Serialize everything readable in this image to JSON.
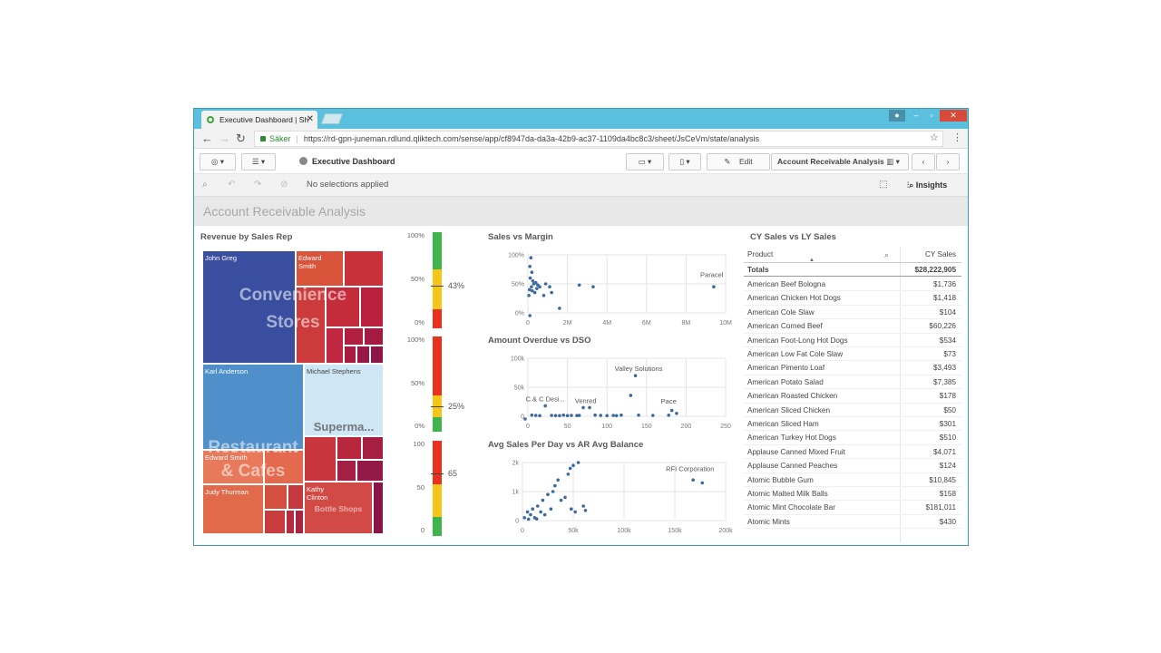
{
  "browser": {
    "tab_title": "Executive Dashboard | Sh",
    "tab_close": "✕",
    "secure_label": "Säker",
    "url": "https://rd-gpn-juneman.rdlund.qliktech.com/sense/app/cf8947da-da3a-42b9-ac37-1109da4bc8c3/sheet/JsCeVm/state/analysis"
  },
  "toolbar": {
    "app_name": "Executive Dashboard",
    "edit_label": "Edit",
    "sheet_selector": "Account Receivable Analysis"
  },
  "selections": {
    "status": "No selections applied",
    "insights_label": "Insights"
  },
  "sheet": {
    "title": "Account Receivable Analysis"
  },
  "treemap": {
    "title": "Revenue by Sales Rep",
    "reps": [
      "John Greg",
      "Edward Smith",
      "Karl Anderson",
      "Michael Stephens",
      "Edward Smith",
      "Judy Thurman",
      "Kathy Clinton"
    ],
    "groups": [
      "Convenience Stores",
      "Restaurant & Cafes",
      "Superma...",
      "Bottle Shops"
    ]
  },
  "gauges": [
    {
      "top": "100%",
      "mid": "50%",
      "bottom": "0%",
      "value": "43%"
    },
    {
      "top": "100%",
      "mid": "50%",
      "bottom": "0%",
      "value": "25%"
    },
    {
      "top": "100",
      "mid": "50",
      "bottom": "0",
      "value": "65"
    }
  ],
  "chart_data": [
    {
      "type": "scatter",
      "title": "Sales vs Margin",
      "yticks": [
        "100%",
        "50%",
        "0%"
      ],
      "xticks": [
        "0",
        "2M",
        "4M",
        "6M",
        "8M",
        "10M"
      ],
      "xlim": [
        0,
        10000000
      ],
      "ylim": [
        0,
        1
      ],
      "annotations": [
        "Paracel"
      ],
      "points": [
        [
          150000,
          0.95
        ],
        [
          100000,
          0.8
        ],
        [
          200000,
          0.7
        ],
        [
          120000,
          0.6
        ],
        [
          250000,
          0.55
        ],
        [
          300000,
          0.5
        ],
        [
          180000,
          0.45
        ],
        [
          400000,
          0.52
        ],
        [
          500000,
          0.48
        ],
        [
          350000,
          0.35
        ],
        [
          600000,
          0.45
        ],
        [
          800000,
          0.3
        ],
        [
          900000,
          0.5
        ],
        [
          1100000,
          0.45
        ],
        [
          1200000,
          0.35
        ],
        [
          1600000,
          0.08
        ],
        [
          2600000,
          0.48
        ],
        [
          3300000,
          0.45
        ],
        [
          9400000,
          0.45
        ],
        [
          100000,
          -0.1
        ],
        [
          50000,
          0.3
        ],
        [
          80000,
          0.4
        ],
        [
          220000,
          0.38
        ],
        [
          450000,
          0.42
        ]
      ]
    },
    {
      "type": "scatter",
      "title": "Amount Overdue vs DSO",
      "yticks": [
        "100k",
        "50k",
        "0"
      ],
      "xticks": [
        "0",
        "50",
        "100",
        "150",
        "200",
        "250"
      ],
      "xlim": [
        0,
        250
      ],
      "ylim": [
        0,
        100000
      ],
      "annotations": [
        "Valley Solutions",
        "C & C Desi...",
        "Venred",
        "Pace"
      ],
      "points": [
        [
          -5,
          -5000
        ],
        [
          5,
          2000
        ],
        [
          15,
          1000
        ],
        [
          22,
          18000
        ],
        [
          30,
          1500
        ],
        [
          40,
          1000
        ],
        [
          45,
          2000
        ],
        [
          55,
          1500
        ],
        [
          62,
          1200
        ],
        [
          70,
          15000
        ],
        [
          78,
          15000
        ],
        [
          85,
          2000
        ],
        [
          92,
          1500
        ],
        [
          100,
          1000
        ],
        [
          108,
          1500
        ],
        [
          112,
          1000
        ],
        [
          118,
          2000
        ],
        [
          130,
          36000
        ],
        [
          136,
          70000
        ],
        [
          140,
          2000
        ],
        [
          158,
          1500
        ],
        [
          178,
          1800
        ],
        [
          182,
          10000
        ],
        [
          188,
          5000
        ],
        [
          10,
          1500
        ],
        [
          35,
          1200
        ],
        [
          50,
          1000
        ],
        [
          65,
          1500
        ]
      ]
    },
    {
      "type": "scatter",
      "title": "Avg Sales Per Day vs AR Avg Balance",
      "yticks": [
        "2k",
        "1k",
        "0"
      ],
      "xticks": [
        "0",
        "50k",
        "100k",
        "150k",
        "200k"
      ],
      "xlim": [
        0,
        200000
      ],
      "ylim": [
        0,
        2000
      ],
      "annotations": [
        "RFI Corporation"
      ],
      "points": [
        [
          2000,
          100
        ],
        [
          5000,
          300
        ],
        [
          8000,
          200
        ],
        [
          10000,
          400
        ],
        [
          12000,
          100
        ],
        [
          15000,
          500
        ],
        [
          18000,
          300
        ],
        [
          20000,
          700
        ],
        [
          22000,
          200
        ],
        [
          25000,
          900
        ],
        [
          28000,
          400
        ],
        [
          30000,
          1000
        ],
        [
          32000,
          1200
        ],
        [
          35000,
          1400
        ],
        [
          38000,
          700
        ],
        [
          42000,
          800
        ],
        [
          45000,
          1600
        ],
        [
          47000,
          1800
        ],
        [
          48000,
          400
        ],
        [
          50000,
          1900
        ],
        [
          52000,
          300
        ],
        [
          55000,
          2000
        ],
        [
          60000,
          500
        ],
        [
          62000,
          350
        ],
        [
          168000,
          1400
        ],
        [
          177000,
          1300
        ],
        [
          6000,
          50
        ],
        [
          14000,
          60
        ]
      ]
    }
  ],
  "table": {
    "title": "CY Sales vs LY Sales",
    "col_product": "Product",
    "col_sales": "CY Sales",
    "totals_label": "Totals",
    "totals_value": "$28,222,905",
    "rows": [
      [
        "American Beef Bologna",
        "$1,736"
      ],
      [
        "American Chicken Hot Dogs",
        "$1,418"
      ],
      [
        "American Cole Slaw",
        "$104"
      ],
      [
        "American Corned Beef",
        "$60,226"
      ],
      [
        "American Foot-Long Hot Dogs",
        "$534"
      ],
      [
        "American Low Fat Cole Slaw",
        "$73"
      ],
      [
        "American Pimento Loaf",
        "$3,493"
      ],
      [
        "American Potato Salad",
        "$7,385"
      ],
      [
        "American Roasted Chicken",
        "$178"
      ],
      [
        "American Sliced Chicken",
        "$50"
      ],
      [
        "American Sliced Ham",
        "$301"
      ],
      [
        "American Turkey Hot Dogs",
        "$510"
      ],
      [
        "Applause Canned Mixed Fruit",
        "$4,071"
      ],
      [
        "Applause Canned Peaches",
        "$124"
      ],
      [
        "Atomic Bubble Gum",
        "$10,845"
      ],
      [
        "Atomic Malted Milk Balls",
        "$158"
      ],
      [
        "Atomic Mint Chocolate Bar",
        "$181,011"
      ],
      [
        "Atomic Mints",
        "$430"
      ]
    ]
  }
}
